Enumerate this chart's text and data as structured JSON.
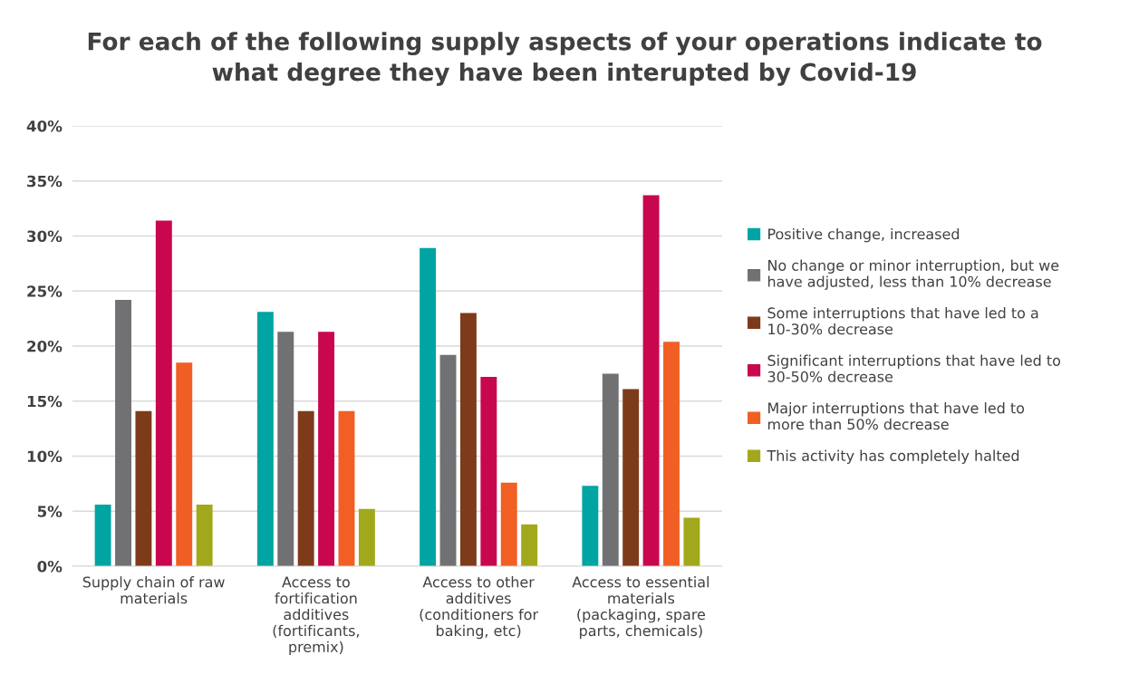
{
  "chart_data": {
    "type": "bar",
    "title": "For each of the following supply aspects of your operations indicate to what degree they have been interupted by Covid-19",
    "categories": [
      "Supply chain of raw materials",
      "Access to fortification additives (fortificants, premix)",
      "Access to other additives (conditioners for baking, etc)",
      "Access to essential materials (packaging, spare parts, chemicals)"
    ],
    "series": [
      {
        "name": "Positive change, increased",
        "color": "#00a4a3",
        "values": [
          5.6,
          23.1,
          28.9,
          7.3
        ]
      },
      {
        "name": "No change or minor interruption, but we have adjusted, less than 10% decrease",
        "color": "#717073",
        "values": [
          24.2,
          21.3,
          19.2,
          17.5
        ]
      },
      {
        "name": "Some interruptions that have led to a 10-30% decrease",
        "color": "#7d3b1a",
        "values": [
          14.1,
          14.1,
          23.0,
          16.1
        ]
      },
      {
        "name": "Significant interruptions that have led to 30-50% decrease",
        "color": "#c8074f",
        "values": [
          31.4,
          21.3,
          17.2,
          33.7
        ]
      },
      {
        "name": "Major interruptions that have led to more than 50% decrease",
        "color": "#f15f24",
        "values": [
          18.5,
          14.1,
          7.6,
          20.4
        ]
      },
      {
        "name": "This activity has completely halted",
        "color": "#a2a81c",
        "values": [
          5.6,
          5.2,
          3.8,
          4.4
        ]
      }
    ],
    "ylim": [
      0,
      40
    ],
    "yticks": [
      {
        "value": 0,
        "label": "0%"
      },
      {
        "value": 5,
        "label": "5%"
      },
      {
        "value": 10,
        "label": "10%"
      },
      {
        "value": 15,
        "label": "15%"
      },
      {
        "value": 20,
        "label": "20%"
      },
      {
        "value": 25,
        "label": "25%"
      },
      {
        "value": 30,
        "label": "30%"
      },
      {
        "value": 35,
        "label": "35%"
      },
      {
        "value": 40,
        "label": "40%"
      }
    ],
    "grid": "y",
    "legend": "right"
  }
}
